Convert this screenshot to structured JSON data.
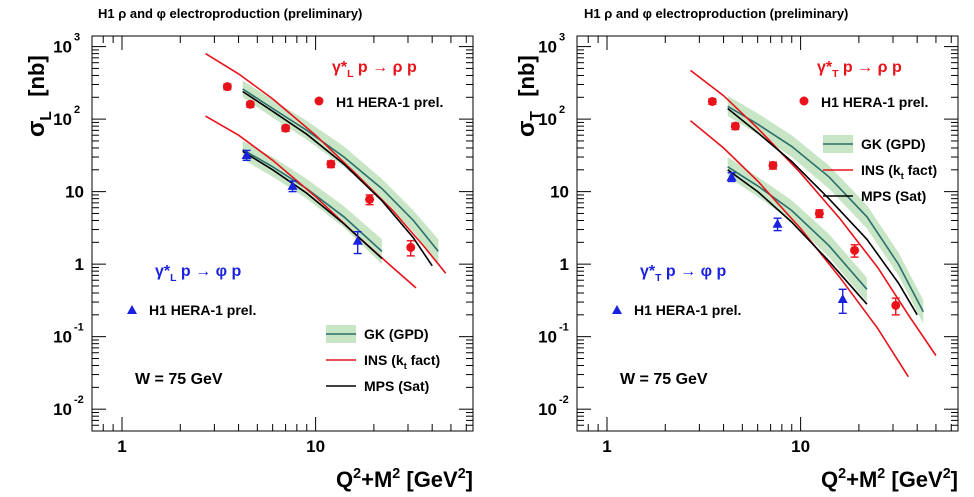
{
  "chart_data": [
    {
      "type": "scatter",
      "title": "H1 ρ and φ electroproduction (preliminary)",
      "ylabel_main": "σ",
      "ylabel_sub": "L",
      "ylabel_unit": "[nb]",
      "xlabel": "Q²+M² [GeV²]",
      "xscale": "log",
      "yscale": "log",
      "xlim": [
        0.7,
        65
      ],
      "ylim": [
        0.005,
        1400
      ],
      "xticks": [
        {
          "v": 1,
          "label": "1"
        },
        {
          "v": 10,
          "label": "10"
        }
      ],
      "yticks": [
        {
          "v": 1000,
          "base": "10",
          "exp": "3"
        },
        {
          "v": 100,
          "base": "10",
          "exp": "2"
        },
        {
          "v": 10,
          "base": "10",
          "exp": ""
        },
        {
          "v": 1,
          "base": "1",
          "exp": ""
        },
        {
          "v": 0.1,
          "base": "10",
          "exp": "-1"
        },
        {
          "v": 0.01,
          "base": "10",
          "exp": "-2"
        }
      ],
      "reaction_rho": "γ*L p → ρ p",
      "reaction_phi": "γ*L p → φ p",
      "data_label_rho": "H1 HERA-1 prel.",
      "data_label_phi": "H1 HERA-1 prel.",
      "energy_label": "W = 75 GeV",
      "legend_position": "bottom-right",
      "legend": [
        {
          "key": "gk",
          "label": "GK (GPD)"
        },
        {
          "key": "ins",
          "label": "INS (kt fact)"
        },
        {
          "key": "mps",
          "label": "MPS (Sat)"
        }
      ],
      "data": {
        "rho": [
          {
            "x": 3.5,
            "y": 280,
            "err": 25
          },
          {
            "x": 4.6,
            "y": 160,
            "err": 14
          },
          {
            "x": 7.0,
            "y": 75,
            "err": 7
          },
          {
            "x": 12.0,
            "y": 24,
            "err": 2.5
          },
          {
            "x": 19.0,
            "y": 7.8,
            "err": 1.2
          },
          {
            "x": 31.0,
            "y": 1.7,
            "err": 0.4
          }
        ],
        "phi": [
          {
            "x": 4.4,
            "y": 32,
            "err": 5
          },
          {
            "x": 7.6,
            "y": 12,
            "err": 2
          },
          {
            "x": 16.5,
            "y": 2.1,
            "err": 0.7
          }
        ]
      },
      "models": {
        "gk_rho": [
          {
            "x": 4.2,
            "y": 260,
            "lo": 200,
            "hi": 340
          },
          {
            "x": 6,
            "y": 140,
            "lo": 105,
            "hi": 185
          },
          {
            "x": 9,
            "y": 70,
            "lo": 52,
            "hi": 95
          },
          {
            "x": 14,
            "y": 30,
            "lo": 22,
            "hi": 42
          },
          {
            "x": 22,
            "y": 11,
            "lo": 8,
            "hi": 15
          },
          {
            "x": 32,
            "y": 4,
            "lo": 2.8,
            "hi": 5.5
          },
          {
            "x": 43,
            "y": 1.5,
            "lo": 1.0,
            "hi": 2.2
          }
        ],
        "gk_phi": [
          {
            "x": 4.2,
            "y": 38,
            "lo": 28,
            "hi": 50
          },
          {
            "x": 6,
            "y": 22,
            "lo": 16,
            "hi": 30
          },
          {
            "x": 9,
            "y": 11,
            "lo": 8,
            "hi": 15
          },
          {
            "x": 14,
            "y": 4.5,
            "lo": 3.2,
            "hi": 6.3
          },
          {
            "x": 22,
            "y": 1.5,
            "lo": 1.0,
            "hi": 2.2
          }
        ],
        "ins_rho": [
          {
            "x": 2.7,
            "y": 800
          },
          {
            "x": 4,
            "y": 420
          },
          {
            "x": 6,
            "y": 190
          },
          {
            "x": 10,
            "y": 60
          },
          {
            "x": 16,
            "y": 18
          },
          {
            "x": 25,
            "y": 5.5
          },
          {
            "x": 36,
            "y": 1.8
          },
          {
            "x": 47,
            "y": 0.75
          }
        ],
        "ins_phi": [
          {
            "x": 2.7,
            "y": 110
          },
          {
            "x": 4,
            "y": 60
          },
          {
            "x": 6,
            "y": 27
          },
          {
            "x": 10,
            "y": 8.5
          },
          {
            "x": 16,
            "y": 2.6
          },
          {
            "x": 25,
            "y": 0.9
          },
          {
            "x": 33,
            "y": 0.47
          }
        ],
        "mps_rho": [
          {
            "x": 4.2,
            "y": 240
          },
          {
            "x": 6,
            "y": 128
          },
          {
            "x": 9,
            "y": 62
          },
          {
            "x": 14,
            "y": 24
          },
          {
            "x": 22,
            "y": 7.5
          },
          {
            "x": 32,
            "y": 2.3
          },
          {
            "x": 40,
            "y": 0.95
          }
        ],
        "mps_phi": [
          {
            "x": 4.2,
            "y": 36
          },
          {
            "x": 6,
            "y": 20
          },
          {
            "x": 9,
            "y": 9.5
          },
          {
            "x": 14,
            "y": 3.6
          },
          {
            "x": 22,
            "y": 1.2
          }
        ]
      }
    },
    {
      "type": "scatter",
      "title": "H1 ρ and φ electroproduction (preliminary)",
      "ylabel_main": "σ",
      "ylabel_sub": "T",
      "ylabel_unit": "[nb]",
      "xlabel": "Q²+M² [GeV²]",
      "xscale": "log",
      "yscale": "log",
      "xlim": [
        0.7,
        65
      ],
      "ylim": [
        0.005,
        1400
      ],
      "xticks": [
        {
          "v": 1,
          "label": "1"
        },
        {
          "v": 10,
          "label": "10"
        }
      ],
      "yticks": [
        {
          "v": 1000,
          "base": "10",
          "exp": "3"
        },
        {
          "v": 100,
          "base": "10",
          "exp": "2"
        },
        {
          "v": 10,
          "base": "10",
          "exp": ""
        },
        {
          "v": 1,
          "base": "1",
          "exp": ""
        },
        {
          "v": 0.1,
          "base": "10",
          "exp": "-1"
        },
        {
          "v": 0.01,
          "base": "10",
          "exp": "-2"
        }
      ],
      "reaction_rho": "γ*T p → ρ p",
      "reaction_phi": "γ*T p → φ p",
      "data_label_rho": "H1 HERA-1 prel.",
      "data_label_phi": "H1 HERA-1 prel.",
      "energy_label": "W = 75 GeV",
      "legend_position": "top-right",
      "legend": [
        {
          "key": "gk",
          "label": "GK (GPD)"
        },
        {
          "key": "ins",
          "label": "INS (kt fact)"
        },
        {
          "key": "mps",
          "label": "MPS (Sat)"
        }
      ],
      "data": {
        "rho": [
          {
            "x": 3.5,
            "y": 175,
            "err": 15
          },
          {
            "x": 4.6,
            "y": 80,
            "err": 8
          },
          {
            "x": 7.2,
            "y": 23,
            "err": 2.5
          },
          {
            "x": 12.5,
            "y": 5,
            "err": 0.6
          },
          {
            "x": 19.0,
            "y": 1.55,
            "err": 0.3
          },
          {
            "x": 31.0,
            "y": 0.27,
            "err": 0.07
          }
        ],
        "phi": [
          {
            "x": 4.4,
            "y": 16,
            "err": 2.2
          },
          {
            "x": 7.6,
            "y": 3.6,
            "err": 0.7
          },
          {
            "x": 16.5,
            "y": 0.33,
            "err": 0.12
          }
        ]
      },
      "models": {
        "gk_rho": [
          {
            "x": 4.2,
            "y": 150,
            "lo": 110,
            "hi": 210
          },
          {
            "x": 6,
            "y": 85,
            "lo": 62,
            "hi": 120
          },
          {
            "x": 9,
            "y": 42,
            "lo": 30,
            "hi": 60
          },
          {
            "x": 14,
            "y": 16,
            "lo": 11,
            "hi": 23
          },
          {
            "x": 22,
            "y": 4.5,
            "lo": 3.1,
            "hi": 6.5
          },
          {
            "x": 32,
            "y": 1.0,
            "lo": 0.7,
            "hi": 1.45
          },
          {
            "x": 43,
            "y": 0.22,
            "lo": 0.15,
            "hi": 0.32
          }
        ],
        "gk_phi": [
          {
            "x": 4.2,
            "y": 22,
            "lo": 16,
            "hi": 30
          },
          {
            "x": 6,
            "y": 12,
            "lo": 8.5,
            "hi": 16
          },
          {
            "x": 9,
            "y": 5.5,
            "lo": 3.9,
            "hi": 7.6
          },
          {
            "x": 14,
            "y": 1.8,
            "lo": 1.25,
            "hi": 2.6
          },
          {
            "x": 22,
            "y": 0.45,
            "lo": 0.3,
            "hi": 0.65
          }
        ],
        "ins_rho": [
          {
            "x": 2.7,
            "y": 470
          },
          {
            "x": 4,
            "y": 210
          },
          {
            "x": 6,
            "y": 75
          },
          {
            "x": 10,
            "y": 18
          },
          {
            "x": 16,
            "y": 4.2
          },
          {
            "x": 25,
            "y": 0.9
          },
          {
            "x": 36,
            "y": 0.2
          },
          {
            "x": 50,
            "y": 0.055
          }
        ],
        "ins_phi": [
          {
            "x": 2.7,
            "y": 95
          },
          {
            "x": 4,
            "y": 40
          },
          {
            "x": 6,
            "y": 14
          },
          {
            "x": 10,
            "y": 3.1
          },
          {
            "x": 16,
            "y": 0.65
          },
          {
            "x": 25,
            "y": 0.13
          },
          {
            "x": 36,
            "y": 0.028
          }
        ],
        "mps_rho": [
          {
            "x": 4.2,
            "y": 140
          },
          {
            "x": 6,
            "y": 65
          },
          {
            "x": 9,
            "y": 26
          },
          {
            "x": 14,
            "y": 8
          },
          {
            "x": 22,
            "y": 2.2
          },
          {
            "x": 32,
            "y": 0.55
          },
          {
            "x": 40,
            "y": 0.2
          }
        ],
        "mps_phi": [
          {
            "x": 4.2,
            "y": 20
          },
          {
            "x": 6,
            "y": 10
          },
          {
            "x": 9,
            "y": 3.8
          },
          {
            "x": 14,
            "y": 1.1
          },
          {
            "x": 22,
            "y": 0.28
          }
        ]
      }
    }
  ],
  "colors": {
    "rho": "#e8121a",
    "phi": "#1a22e0",
    "gk_band": "#c8e6c5",
    "gk_line": "#2a6f6c",
    "ins": "#e8121a",
    "mps": "#000000"
  }
}
